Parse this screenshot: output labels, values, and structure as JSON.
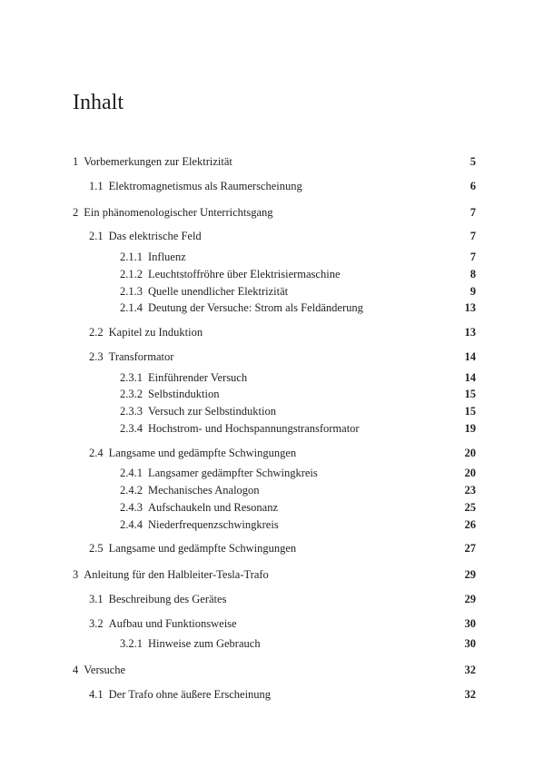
{
  "title": "Inhalt",
  "colors": {
    "background": "#ffffff",
    "text": "#222222",
    "page_num": "#222222"
  },
  "typography": {
    "title_fontsize": 24,
    "body_fontsize": 12.5,
    "font_family": "Georgia, serif"
  },
  "entries": [
    {
      "level": 0,
      "num": "1",
      "label": "Vorbemerkungen zur Elektrizität",
      "page": "5"
    },
    {
      "level": 1,
      "num": "1.1",
      "label": "Elektromagnetismus als Raumerscheinung",
      "page": "6"
    },
    {
      "level": 0,
      "num": "2",
      "label": "Ein phänomenologischer Unterrichtsgang",
      "page": "7"
    },
    {
      "level": 1,
      "num": "2.1",
      "label": "Das elektrische Feld",
      "page": "7"
    },
    {
      "level": 2,
      "num": "2.1.1",
      "label": "Influenz",
      "page": "7"
    },
    {
      "level": 2,
      "num": "2.1.2",
      "label": "Leuchtstoffröhre über Elektrisiermaschine",
      "page": "8"
    },
    {
      "level": 2,
      "num": "2.1.3",
      "label": "Quelle unendlicher Elektrizität",
      "page": "9"
    },
    {
      "level": 2,
      "num": "2.1.4",
      "label": "Deutung der Versuche: Strom als Feldänderung",
      "page": "13"
    },
    {
      "level": 1,
      "num": "2.2",
      "label": "Kapitel zu Induktion",
      "page": "13"
    },
    {
      "level": 1,
      "num": "2.3",
      "label": "Transformator",
      "page": "14"
    },
    {
      "level": 2,
      "num": "2.3.1",
      "label": "Einführender Versuch",
      "page": "14"
    },
    {
      "level": 2,
      "num": "2.3.2",
      "label": "Selbstinduktion",
      "page": "15"
    },
    {
      "level": 2,
      "num": "2.3.3",
      "label": "Versuch zur Selbstinduktion",
      "page": "15"
    },
    {
      "level": 2,
      "num": "2.3.4",
      "label": "Hochstrom- und Hochspannungstransformator",
      "page": "19"
    },
    {
      "level": 1,
      "num": "2.4",
      "label": "Langsame und gedämpfte Schwingungen",
      "page": "20"
    },
    {
      "level": 2,
      "num": "2.4.1",
      "label": "Langsamer gedämpfter Schwingkreis",
      "page": "20"
    },
    {
      "level": 2,
      "num": "2.4.2",
      "label": "Mechanisches Analogon",
      "page": "23"
    },
    {
      "level": 2,
      "num": "2.4.3",
      "label": "Aufschaukeln und Resonanz",
      "page": "25"
    },
    {
      "level": 2,
      "num": "2.4.4",
      "label": "Niederfrequenzschwingkreis",
      "page": "26"
    },
    {
      "level": 1,
      "num": "2.5",
      "label": "Langsame und gedämpfte Schwingungen",
      "page": "27"
    },
    {
      "level": 0,
      "num": "3",
      "label": "Anleitung für den Halbleiter-Tesla-Trafo",
      "page": "29"
    },
    {
      "level": 1,
      "num": "3.1",
      "label": "Beschreibung des Gerätes",
      "page": "29"
    },
    {
      "level": 1,
      "num": "3.2",
      "label": "Aufbau und Funktionsweise",
      "page": "30"
    },
    {
      "level": 2,
      "num": "3.2.1",
      "label": "Hinweise zum Gebrauch",
      "page": "30"
    },
    {
      "level": 0,
      "num": "4",
      "label": "Versuche",
      "page": "32"
    },
    {
      "level": 1,
      "num": "4.1",
      "label": "Der Trafo ohne äußere Erscheinung",
      "page": "32"
    }
  ]
}
